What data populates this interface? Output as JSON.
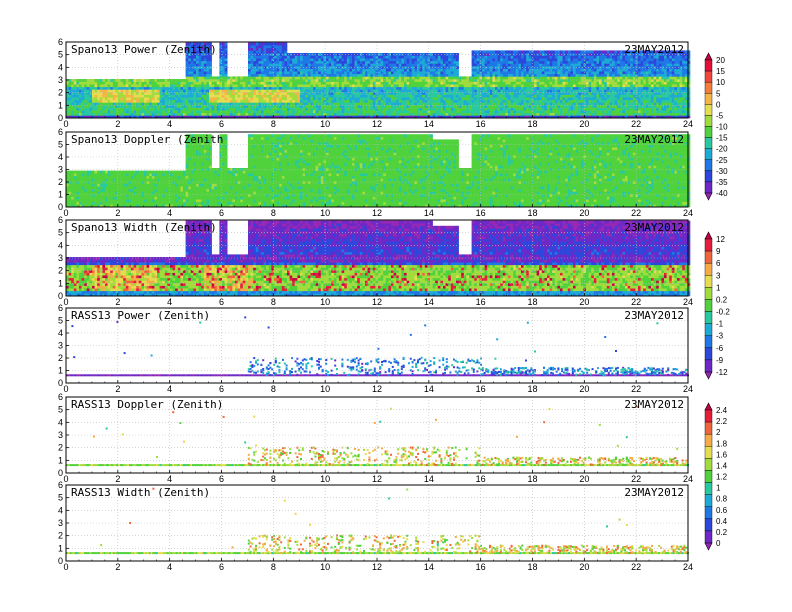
{
  "chart_data": {
    "type": "heatmap",
    "panels": [
      {
        "title": "Spano13 Power (Zenith)",
        "date": "23MAY2012",
        "kind": "spano-power",
        "colorbar": 0
      },
      {
        "title": "Spano13 Doppler (Zenith",
        "date": "23MAY2012",
        "kind": "spano-doppler",
        "colorbar": 0
      },
      {
        "title": "Spano13 Width (Zenith)",
        "date": "23MAY2012",
        "kind": "spano-width",
        "colorbar": 1
      },
      {
        "title": "RASS13 Power (Zenith)",
        "date": "23MAY2012",
        "kind": "rass-power",
        "colorbar": 1
      },
      {
        "title": "RASS13 Doppler (Zenith)",
        "date": "23MAY2012",
        "kind": "rass-doppler",
        "colorbar": 2
      },
      {
        "title": "RASS13 Width (Zenith)",
        "date": "23MAY2012",
        "kind": "rass-width",
        "colorbar": 2
      }
    ],
    "x_ticks": [
      "0",
      "2",
      "4",
      "6",
      "8",
      "10",
      "12",
      "14",
      "16",
      "18",
      "20",
      "22",
      "24"
    ],
    "y_ticks": [
      "0",
      "1",
      "2",
      "3",
      "4",
      "5",
      "6"
    ],
    "xlim": [
      0,
      24
    ],
    "ylim": [
      0,
      6
    ],
    "grid": true,
    "colorbars": [
      {
        "labels": [
          "20",
          "15",
          "10",
          "5",
          "0",
          "-5",
          "-10",
          "-15",
          "-20",
          "-25",
          "-30",
          "-35",
          "-40"
        ],
        "colors": [
          "#c80046",
          "#e60f3c",
          "#f0463c",
          "#f57d3c",
          "#f5b446",
          "#e6dc50",
          "#a0dc3c",
          "#50d23c",
          "#28c8a0",
          "#1eaad7",
          "#1e78e6",
          "#2d46dc",
          "#6e28c8",
          "#9628b4"
        ]
      },
      {
        "labels": [
          "12",
          "9",
          "6",
          "3",
          "1",
          "0.2",
          "-0.2",
          "-1",
          "-3",
          "-6",
          "-9",
          "-12"
        ],
        "colors": [
          "#c80046",
          "#e61e3c",
          "#f0643c",
          "#f5aa46",
          "#e6dc50",
          "#a0dc3c",
          "#50d23c",
          "#28c8a0",
          "#1eaad7",
          "#1e78e6",
          "#2d46dc",
          "#6e28c8",
          "#9628b4"
        ]
      },
      {
        "labels": [
          "2.4",
          "2.2",
          "2",
          "1.8",
          "1.6",
          "1.4",
          "1.2",
          "1",
          "0.8",
          "0.6",
          "0.4",
          "0.2",
          "0"
        ],
        "colors": [
          "#c80046",
          "#e61e3c",
          "#f0643c",
          "#f5aa46",
          "#e6dc50",
          "#a0dc3c",
          "#50d23c",
          "#28c8a0",
          "#1eaad7",
          "#1e78e6",
          "#2d46dc",
          "#6e28c8",
          "#9628b4"
        ]
      }
    ]
  }
}
